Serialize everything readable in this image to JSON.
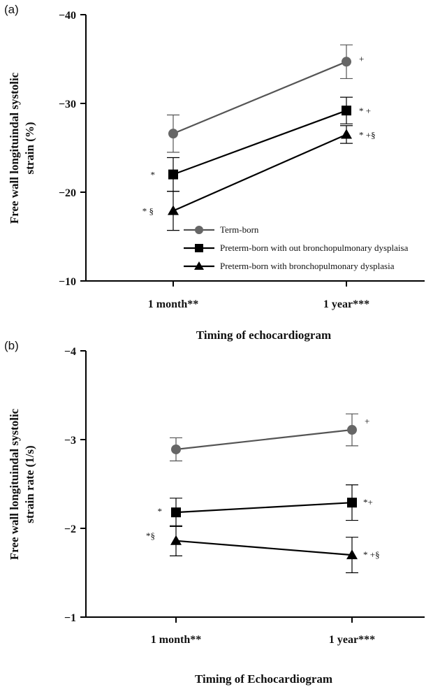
{
  "chart_data": [
    {
      "type": "line",
      "panel": "(a)",
      "xlabel": "Timing of echocardiogram",
      "ylabel_lines": [
        "Free wall longituindal systolic",
        "strain  (%)"
      ],
      "categories": [
        "1 month**",
        "1 year***"
      ],
      "ylim": [
        -40,
        -10
      ],
      "yticks": [
        -40,
        -30,
        -20,
        -10
      ],
      "ytick_labels": [
        "−40",
        "−30",
        "−20",
        "−10"
      ],
      "y_inverted": true,
      "legend_position": "bottom-right",
      "series": [
        {
          "name": "Term-born",
          "marker": "circle",
          "color": "#555555",
          "marker_color": "#666666",
          "values": [
            -26.6,
            -34.7
          ],
          "err": [
            2.1,
            1.9
          ],
          "annotations": [
            "",
            "+"
          ]
        },
        {
          "name": "Preterm-born with out bronchopulmonary dysplaisa",
          "marker": "square",
          "color": "#000000",
          "marker_color": "#000000",
          "values": [
            -22.0,
            -29.2
          ],
          "err": [
            1.9,
            1.5
          ],
          "annotations": [
            "*",
            "* +"
          ]
        },
        {
          "name": "Preterm-born  with bronchopulmonary dysplasia",
          "marker": "triangle",
          "color": "#000000",
          "marker_color": "#000000",
          "values": [
            -17.9,
            -26.5
          ],
          "err": [
            2.2,
            1.0
          ],
          "annotations": [
            "* §",
            "* +§"
          ]
        }
      ]
    },
    {
      "type": "line",
      "panel": "(b)",
      "xlabel": "Timing of Echocardiogram",
      "ylabel_lines": [
        "Free wall longituindal systolic",
        "strain rate  (1/s)"
      ],
      "categories": [
        "1 month**",
        "1 year***"
      ],
      "ylim": [
        -4,
        -1
      ],
      "yticks": [
        -4,
        -3,
        -2,
        -1
      ],
      "ytick_labels": [
        "−4",
        "−3",
        "−2",
        "−1"
      ],
      "y_inverted": true,
      "series": [
        {
          "name": "Term-born",
          "marker": "circle",
          "color": "#555555",
          "marker_color": "#666666",
          "values": [
            -2.89,
            -3.11
          ],
          "err": [
            0.13,
            0.18
          ],
          "annotations": [
            "",
            "+"
          ]
        },
        {
          "name": "Preterm-born with out bronchopulmonary dysplaisa",
          "marker": "square",
          "color": "#000000",
          "marker_color": "#000000",
          "values": [
            -2.18,
            -2.29
          ],
          "err": [
            0.16,
            0.2
          ],
          "annotations": [
            "*",
            "*+"
          ]
        },
        {
          "name": "Preterm-born  with bronchopulmonary dysplasia",
          "marker": "triangle",
          "color": "#000000",
          "marker_color": "#000000",
          "values": [
            -1.86,
            -1.7
          ],
          "err": [
            0.17,
            0.2
          ],
          "annotations": [
            "*§",
            "* +§"
          ]
        }
      ]
    }
  ]
}
